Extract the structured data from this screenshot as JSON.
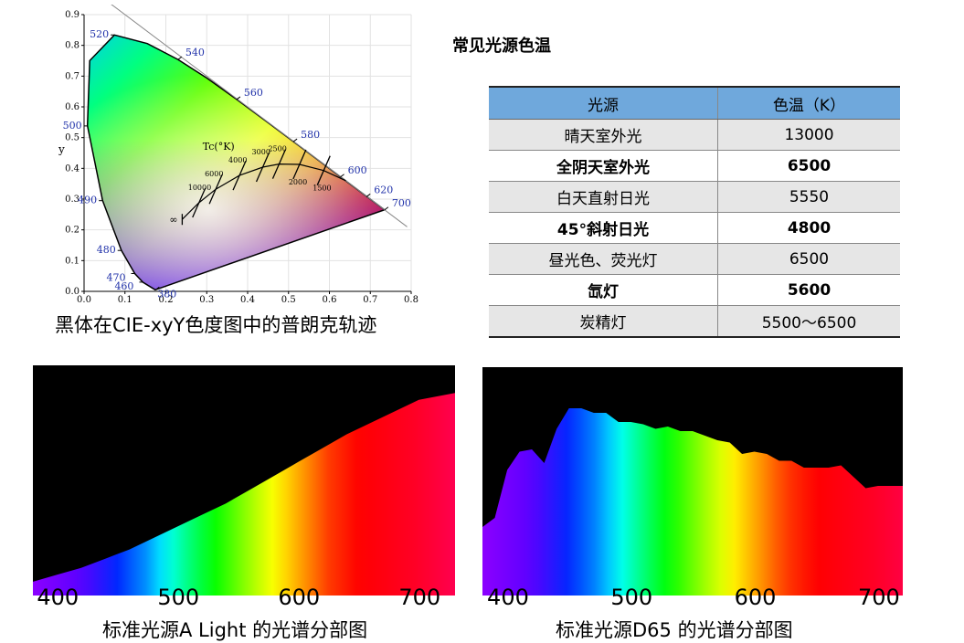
{
  "cie": {
    "caption": "黑体在CIE-xyY色度图中的普朗克轨迹",
    "x_label": "x",
    "y_label": "y",
    "x_ticks": [
      "0.0",
      "0.1",
      "0.2",
      "0.3",
      "0.4",
      "0.5",
      "0.6",
      "0.7",
      "0.8"
    ],
    "y_ticks": [
      "0.0",
      "0.1",
      "0.2",
      "0.3",
      "0.4",
      "0.5",
      "0.6",
      "0.7",
      "0.8",
      "0.9"
    ],
    "wavelength_labels": [
      {
        "label": "380",
        "x": 0.175,
        "y": 0.005
      },
      {
        "label": "460",
        "x": 0.144,
        "y": 0.03
      },
      {
        "label": "470",
        "x": 0.124,
        "y": 0.058
      },
      {
        "label": "480",
        "x": 0.091,
        "y": 0.133
      },
      {
        "label": "490",
        "x": 0.045,
        "y": 0.295
      },
      {
        "label": "500",
        "x": 0.008,
        "y": 0.538
      },
      {
        "label": "520",
        "x": 0.074,
        "y": 0.834
      },
      {
        "label": "540",
        "x": 0.23,
        "y": 0.754
      },
      {
        "label": "560",
        "x": 0.373,
        "y": 0.624
      },
      {
        "label": "580",
        "x": 0.512,
        "y": 0.487
      },
      {
        "label": "600",
        "x": 0.627,
        "y": 0.372
      },
      {
        "label": "620",
        "x": 0.691,
        "y": 0.308
      },
      {
        "label": "700",
        "x": 0.735,
        "y": 0.265
      }
    ],
    "locus_title": "Tc(°K)",
    "cct_labels": [
      {
        "label": "10000",
        "x": 0.281,
        "y": 0.288
      },
      {
        "label": "6000",
        "x": 0.322,
        "y": 0.332
      },
      {
        "label": "4000",
        "x": 0.38,
        "y": 0.377
      },
      {
        "label": "3000",
        "x": 0.437,
        "y": 0.404
      },
      {
        "label": "2500",
        "x": 0.477,
        "y": 0.414
      },
      {
        "label": "2000",
        "x": 0.527,
        "y": 0.413
      },
      {
        "label": "1500",
        "x": 0.586,
        "y": 0.393
      },
      {
        "label": "∞",
        "x": 0.24,
        "y": 0.234
      }
    ]
  },
  "table": {
    "title": "常见光源色温",
    "headers": [
      "光源",
      "色温（K）"
    ],
    "rows": [
      {
        "source": "晴天室外光",
        "temp": "13000"
      },
      {
        "source": "全阴天室外光",
        "temp": "6500"
      },
      {
        "source": "白天直射日光",
        "temp": "5550"
      },
      {
        "source": "45°斜射日光",
        "temp": "4800"
      },
      {
        "source": "昼光色、荧光灯",
        "temp": "6500"
      },
      {
        "source": "氙灯",
        "temp": "5600"
      },
      {
        "source": "炭精灯",
        "temp": "5500～6500"
      }
    ]
  },
  "chart_data": [
    {
      "type": "area",
      "title": "标准光源A Light 的光谱分部图",
      "xlim": [
        380,
        730
      ],
      "x_ticks": [
        "400",
        "500",
        "600",
        "700"
      ],
      "x": [
        380,
        400,
        420,
        440,
        460,
        480,
        500,
        520,
        540,
        560,
        580,
        600,
        620,
        640,
        660,
        680,
        700,
        720,
        730
      ],
      "values": [
        0.06,
        0.09,
        0.12,
        0.16,
        0.2,
        0.25,
        0.3,
        0.35,
        0.4,
        0.46,
        0.52,
        0.58,
        0.64,
        0.7,
        0.75,
        0.8,
        0.85,
        0.87,
        0.88
      ]
    },
    {
      "type": "area",
      "title": "标准光源D65 的光谱分部图",
      "xlim": [
        380,
        720
      ],
      "x_ticks": [
        "400",
        "500",
        "600",
        "700"
      ],
      "x": [
        380,
        390,
        400,
        410,
        420,
        430,
        440,
        450,
        460,
        470,
        480,
        490,
        500,
        510,
        520,
        530,
        540,
        550,
        560,
        570,
        580,
        590,
        600,
        610,
        620,
        630,
        640,
        650,
        660,
        670,
        680,
        690,
        700,
        710,
        720
      ],
      "values": [
        0.3,
        0.34,
        0.55,
        0.63,
        0.64,
        0.58,
        0.73,
        0.82,
        0.82,
        0.8,
        0.8,
        0.76,
        0.76,
        0.75,
        0.73,
        0.74,
        0.72,
        0.72,
        0.7,
        0.68,
        0.67,
        0.62,
        0.63,
        0.62,
        0.59,
        0.59,
        0.56,
        0.56,
        0.56,
        0.57,
        0.52,
        0.47,
        0.48,
        0.48,
        0.48
      ]
    }
  ]
}
